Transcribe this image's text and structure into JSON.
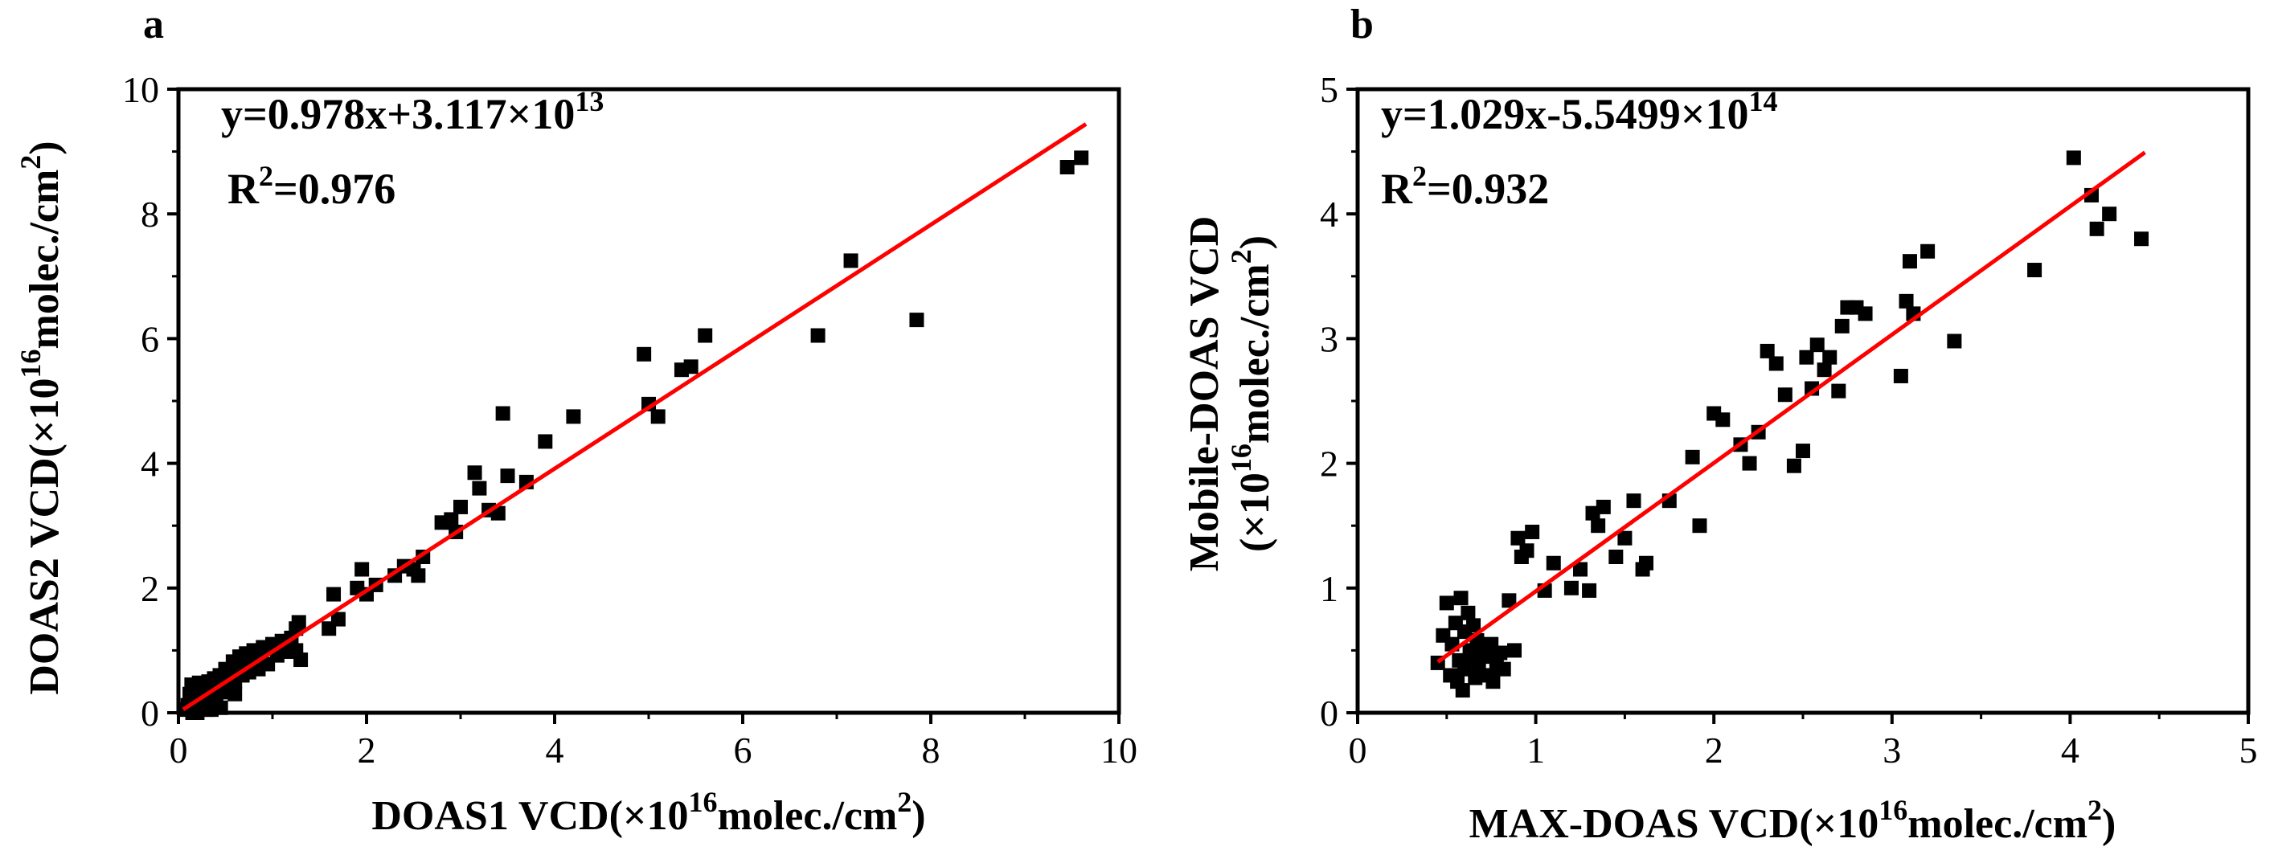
{
  "chart_data": [
    {
      "type": "scatter",
      "panel_label": "a",
      "xlabel": {
        "main": "DOAS1 VCD(×10",
        "exp": "16",
        "rest": "molec./cm",
        "exp2": "2",
        "close": ")"
      },
      "ylabel": {
        "main": "DOAS2 VCD(×10",
        "exp": "16",
        "rest": "molec./cm",
        "exp2": "2",
        "close": ")"
      },
      "xlim": [
        0,
        10
      ],
      "ylim": [
        0,
        10
      ],
      "xticks": [
        "0",
        "2",
        "4",
        "6",
        "8",
        "10"
      ],
      "yticks": [
        "0",
        "2",
        "4",
        "6",
        "8",
        "10"
      ],
      "equation": {
        "main": "y=0.978x+3.117×10",
        "exp": "13"
      },
      "r2": {
        "r": "R",
        "exp": "2",
        "value": "=0.976"
      },
      "fit": {
        "slope": 0.978,
        "intercept": 0.0031,
        "x_range": [
          0.05,
          9.65
        ],
        "color": "#ff0000"
      },
      "marker_color": "#000000",
      "points": [
        [
          0.08,
          0.05
        ],
        [
          0.1,
          0.12
        ],
        [
          0.12,
          0.3
        ],
        [
          0.14,
          0.45
        ],
        [
          0.16,
          0.2
        ],
        [
          0.18,
          0.38
        ],
        [
          0.2,
          0.1
        ],
        [
          0.22,
          0.48
        ],
        [
          0.24,
          0.3
        ],
        [
          0.26,
          0.15
        ],
        [
          0.28,
          0.42
        ],
        [
          0.3,
          0.25
        ],
        [
          0.32,
          0.5
        ],
        [
          0.34,
          0.18
        ],
        [
          0.36,
          0.35
        ],
        [
          0.38,
          0.55
        ],
        [
          0.4,
          0.28
        ],
        [
          0.42,
          0.42
        ],
        [
          0.44,
          0.6
        ],
        [
          0.46,
          0.33
        ],
        [
          0.48,
          0.48
        ],
        [
          0.5,
          0.7
        ],
        [
          0.52,
          0.4
        ],
        [
          0.55,
          0.58
        ],
        [
          0.58,
          0.82
        ],
        [
          0.6,
          0.5
        ],
        [
          0.62,
          0.68
        ],
        [
          0.65,
          0.9
        ],
        [
          0.68,
          0.6
        ],
        [
          0.7,
          0.75
        ],
        [
          0.72,
          0.95
        ],
        [
          0.75,
          0.65
        ],
        [
          0.78,
          0.85
        ],
        [
          0.8,
          1.0
        ],
        [
          0.85,
          0.7
        ],
        [
          0.88,
          0.88
        ],
        [
          0.9,
          1.05
        ],
        [
          0.95,
          0.78
        ],
        [
          1.0,
          1.1
        ],
        [
          1.05,
          0.92
        ],
        [
          1.1,
          1.15
        ],
        [
          1.15,
          0.98
        ],
        [
          1.2,
          1.2
        ],
        [
          1.25,
          1.35
        ],
        [
          1.28,
          1.45
        ],
        [
          1.3,
          0.85
        ],
        [
          1.25,
          1.0
        ],
        [
          0.3,
          0.05
        ],
        [
          0.2,
          0.0
        ],
        [
          0.4,
          0.15
        ],
        [
          0.6,
          0.3
        ],
        [
          0.15,
          0.0
        ],
        [
          0.45,
          0.08
        ],
        [
          0.35,
          0.05
        ],
        [
          1.6,
          1.35
        ],
        [
          1.65,
          1.9
        ],
        [
          1.7,
          1.5
        ],
        [
          1.9,
          2.0
        ],
        [
          1.95,
          2.3
        ],
        [
          2.0,
          1.9
        ],
        [
          2.1,
          2.05
        ],
        [
          2.3,
          2.2
        ],
        [
          2.4,
          2.35
        ],
        [
          2.5,
          2.3
        ],
        [
          2.55,
          2.2
        ],
        [
          2.6,
          2.5
        ],
        [
          2.8,
          3.05
        ],
        [
          2.9,
          3.1
        ],
        [
          2.95,
          2.9
        ],
        [
          3.0,
          3.3
        ],
        [
          3.15,
          3.85
        ],
        [
          3.2,
          3.6
        ],
        [
          3.3,
          3.25
        ],
        [
          3.4,
          3.2
        ],
        [
          3.45,
          4.8
        ],
        [
          3.5,
          3.8
        ],
        [
          3.7,
          3.7
        ],
        [
          3.9,
          4.35
        ],
        [
          4.2,
          4.75
        ],
        [
          4.95,
          5.75
        ],
        [
          5.0,
          4.95
        ],
        [
          5.1,
          4.75
        ],
        [
          5.35,
          5.5
        ],
        [
          5.45,
          5.55
        ],
        [
          5.6,
          6.05
        ],
        [
          6.8,
          6.05
        ],
        [
          7.15,
          7.25
        ],
        [
          7.85,
          6.3
        ],
        [
          9.45,
          8.75
        ],
        [
          9.6,
          8.9
        ]
      ]
    },
    {
      "type": "scatter",
      "panel_label": "b",
      "xlabel": {
        "main": "MAX-DOAS VCD(×10",
        "exp": "16",
        "rest": "molec./cm",
        "exp2": "2",
        "close": ")"
      },
      "ylabel_line1": "Mobile-DOAS VCD",
      "ylabel_line2": {
        "main": "(×10",
        "exp": "16",
        "rest": "molec./cm",
        "exp2": "2",
        "close": ")"
      },
      "xlim": [
        0,
        5
      ],
      "ylim": [
        0,
        5
      ],
      "xticks": [
        "0",
        "1",
        "2",
        "3",
        "4",
        "5"
      ],
      "yticks": [
        "0",
        "1",
        "2",
        "3",
        "4",
        "5"
      ],
      "equation": {
        "main": "y=1.029x-5.5499×10",
        "exp": "14"
      },
      "r2": {
        "r": "R",
        "exp": "2",
        "value": "=0.932"
      },
      "fit": {
        "slope": 1.029,
        "intercept": -0.055,
        "x_range": [
          0.45,
          4.42
        ],
        "color": "#ff0000"
      },
      "marker_color": "#000000",
      "points": [
        [
          0.45,
          0.4
        ],
        [
          0.48,
          0.62
        ],
        [
          0.5,
          0.88
        ],
        [
          0.52,
          0.3
        ],
        [
          0.53,
          0.55
        ],
        [
          0.55,
          0.72
        ],
        [
          0.56,
          0.25
        ],
        [
          0.57,
          0.42
        ],
        [
          0.58,
          0.92
        ],
        [
          0.59,
          0.18
        ],
        [
          0.6,
          0.65
        ],
        [
          0.6,
          0.35
        ],
        [
          0.62,
          0.8
        ],
        [
          0.63,
          0.5
        ],
        [
          0.64,
          0.45
        ],
        [
          0.65,
          0.7
        ],
        [
          0.66,
          0.28
        ],
        [
          0.67,
          0.58
        ],
        [
          0.68,
          0.38
        ],
        [
          0.7,
          0.52
        ],
        [
          0.72,
          0.45
        ],
        [
          0.74,
          0.3
        ],
        [
          0.75,
          0.55
        ],
        [
          0.76,
          0.25
        ],
        [
          0.78,
          0.4
        ],
        [
          0.8,
          0.48
        ],
        [
          0.82,
          0.35
        ],
        [
          0.85,
          0.9
        ],
        [
          0.88,
          0.5
        ],
        [
          0.9,
          1.4
        ],
        [
          0.92,
          1.25
        ],
        [
          0.95,
          1.3
        ],
        [
          0.98,
          1.45
        ],
        [
          1.05,
          0.98
        ],
        [
          1.1,
          1.2
        ],
        [
          1.2,
          1.0
        ],
        [
          1.25,
          1.15
        ],
        [
          1.3,
          0.98
        ],
        [
          1.32,
          1.6
        ],
        [
          1.35,
          1.5
        ],
        [
          1.38,
          1.65
        ],
        [
          1.45,
          1.25
        ],
        [
          1.5,
          1.4
        ],
        [
          1.55,
          1.7
        ],
        [
          1.6,
          1.15
        ],
        [
          1.62,
          1.2
        ],
        [
          1.75,
          1.7
        ],
        [
          1.88,
          2.05
        ],
        [
          1.92,
          1.5
        ],
        [
          2.0,
          2.4
        ],
        [
          2.05,
          2.35
        ],
        [
          2.15,
          2.15
        ],
        [
          2.2,
          2.0
        ],
        [
          2.25,
          2.25
        ],
        [
          2.3,
          2.9
        ],
        [
          2.35,
          2.8
        ],
        [
          2.4,
          2.55
        ],
        [
          2.45,
          1.98
        ],
        [
          2.5,
          2.1
        ],
        [
          2.52,
          2.85
        ],
        [
          2.55,
          2.6
        ],
        [
          2.58,
          2.95
        ],
        [
          2.62,
          2.75
        ],
        [
          2.65,
          2.85
        ],
        [
          2.7,
          2.58
        ],
        [
          2.72,
          3.1
        ],
        [
          2.75,
          3.25
        ],
        [
          2.8,
          3.25
        ],
        [
          2.85,
          3.2
        ],
        [
          3.05,
          2.7
        ],
        [
          3.08,
          3.3
        ],
        [
          3.1,
          3.62
        ],
        [
          3.12,
          3.2
        ],
        [
          3.2,
          3.7
        ],
        [
          3.35,
          2.98
        ],
        [
          3.8,
          3.55
        ],
        [
          4.02,
          4.45
        ],
        [
          4.12,
          4.15
        ],
        [
          4.15,
          3.88
        ],
        [
          4.22,
          4.0
        ],
        [
          4.4,
          3.8
        ]
      ]
    }
  ]
}
